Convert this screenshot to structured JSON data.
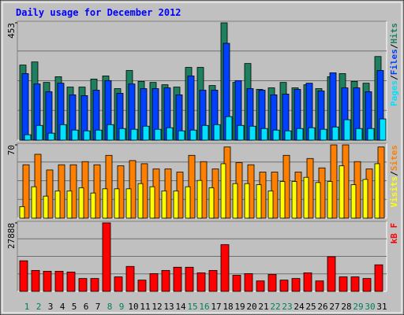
{
  "chart_data": [
    {
      "type": "bar",
      "title": "Daily usage for December 2012",
      "ylim": [
        0,
        453
      ],
      "yticks": [
        453
      ],
      "separator": "/",
      "series": [
        {
          "name": "Hits",
          "color": "#1f8060",
          "values": [
            290,
            302,
            223,
            245,
            205,
            205,
            236,
            248,
            199,
            269,
            227,
            223,
            214,
            205,
            281,
            281,
            211,
            453,
            223,
            296,
            196,
            202,
            223,
            202,
            214,
            199,
            245,
            257,
            227,
            220,
            323
          ]
        },
        {
          "name": "Files",
          "color": "#0040ff",
          "values": [
            257,
            217,
            187,
            220,
            175,
            172,
            193,
            230,
            181,
            217,
            199,
            199,
            202,
            175,
            248,
            193,
            193,
            374,
            230,
            199,
            193,
            175,
            178,
            196,
            220,
            190,
            260,
            202,
            202,
            187,
            269
          ]
        },
        {
          "name": "Pages",
          "color": "#00e0ff",
          "values": [
            21,
            57,
            27,
            60,
            39,
            36,
            39,
            60,
            45,
            42,
            54,
            42,
            48,
            36,
            39,
            57,
            60,
            91,
            57,
            54,
            45,
            39,
            36,
            45,
            48,
            42,
            51,
            79,
            45,
            45,
            82
          ]
        }
      ]
    },
    {
      "type": "bar",
      "ylim": [
        0,
        70
      ],
      "yticks": [
        70
      ],
      "separator": "/",
      "series": [
        {
          "name": "Sites",
          "color": "#ff8000",
          "values": [
            51,
            61,
            46,
            51,
            51,
            54,
            51,
            60,
            50,
            55,
            52,
            47,
            47,
            44,
            60,
            54,
            47,
            68,
            53,
            51,
            44,
            44,
            60,
            44,
            57,
            48,
            70,
            70,
            54,
            47,
            68
          ]
        },
        {
          "name": "Visits",
          "color": "#ffff00",
          "values": [
            11,
            30,
            21,
            26,
            26,
            29,
            24,
            28,
            28,
            28,
            33,
            30,
            26,
            26,
            30,
            36,
            29,
            52,
            33,
            33,
            32,
            26,
            35,
            35,
            39,
            34,
            35,
            50,
            32,
            37,
            52
          ]
        }
      ]
    },
    {
      "type": "bar",
      "ylim": [
        0,
        27888
      ],
      "yticks": [
        27888
      ],
      "categories": [
        "1",
        "2",
        "3",
        "4",
        "5",
        "6",
        "7",
        "8",
        "9",
        "10",
        "11",
        "12",
        "13",
        "14",
        "15",
        "16",
        "17",
        "18",
        "19",
        "20",
        "21",
        "22",
        "23",
        "24",
        "25",
        "26",
        "27",
        "28",
        "29",
        "30",
        "31"
      ],
      "category_colors": [
        "#00805c",
        "#00805c",
        "#000000",
        "#000000",
        "#000000",
        "#000000",
        "#000000",
        "#00805c",
        "#00805c",
        "#000000",
        "#000000",
        "#000000",
        "#000000",
        "#000000",
        "#00805c",
        "#00805c",
        "#000000",
        "#000000",
        "#000000",
        "#000000",
        "#000000",
        "#00805c",
        "#00805c",
        "#000000",
        "#000000",
        "#000000",
        "#000000",
        "#000000",
        "#00805c",
        "#00805c",
        "#000000"
      ],
      "series": [
        {
          "name": "kB F",
          "color": "#ff0000",
          "values": [
            12464,
            8528,
            8200,
            8200,
            7872,
            5248,
            5248,
            27888,
            5904,
            10168,
            4592,
            7216,
            8528,
            9840,
            9840,
            7544,
            8528,
            19024,
            6560,
            7216,
            4264,
            6888,
            4592,
            5248,
            7544,
            4264,
            14104,
            5904,
            5904,
            5248,
            10824
          ]
        }
      ]
    }
  ]
}
